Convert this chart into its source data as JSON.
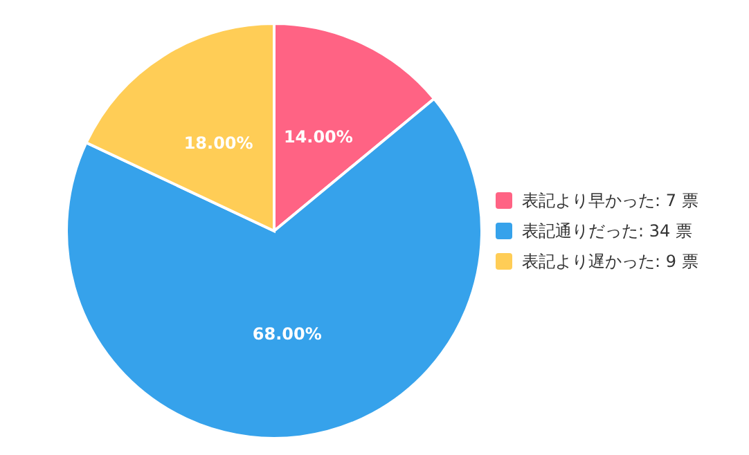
{
  "chart_data": {
    "type": "pie",
    "categories": [
      "表記より早かった: 7 票",
      "表記通りだった: 34 票",
      "表記より遅かった: 9 票"
    ],
    "values": [
      14,
      68,
      18
    ],
    "colors": [
      "#ff6384",
      "#36a2eb",
      "#ffcd56"
    ],
    "value_labels": [
      "14.00%",
      "68.00%",
      "18.00%"
    ],
    "legend": "right"
  }
}
